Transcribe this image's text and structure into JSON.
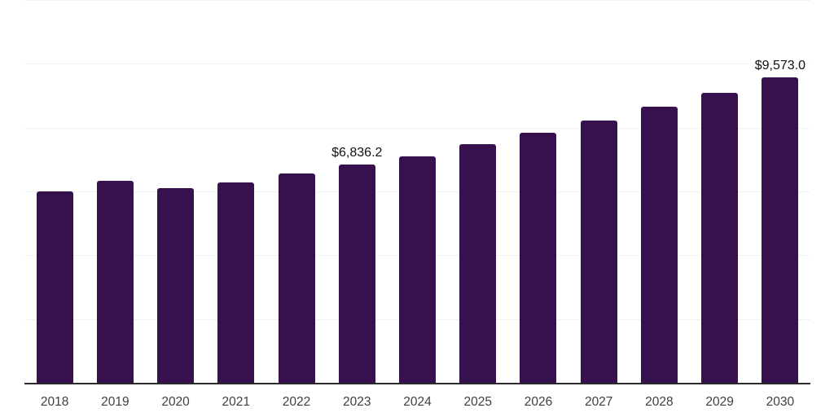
{
  "chart_data": {
    "type": "bar",
    "title": "",
    "xlabel": "",
    "ylabel": "",
    "categories": [
      "2018",
      "2019",
      "2020",
      "2021",
      "2022",
      "2023",
      "2024",
      "2025",
      "2026",
      "2027",
      "2028",
      "2029",
      "2030"
    ],
    "values": [
      6010,
      6330,
      6100,
      6290,
      6560,
      6836.2,
      7100,
      7470,
      7840,
      8220,
      8660,
      9090,
      9573.0
    ],
    "data_labels": [
      "",
      "",
      "",
      "",
      "",
      "$6,836.2",
      "",
      "",
      "",
      "",
      "",
      "",
      "$9,573.0"
    ],
    "ylim": [
      0,
      12000
    ],
    "gridline_values": [
      2000,
      4000,
      6000,
      8000,
      10000,
      12000
    ],
    "grid": "horizontal",
    "legend_position": "none",
    "colors": {
      "bar": "#37114E",
      "gridline": "#f1f1f1",
      "axis_line": "#2b2b2b",
      "tick_label": "#3f3f3f",
      "value_label": "#111111",
      "background": "#ffffff"
    }
  }
}
